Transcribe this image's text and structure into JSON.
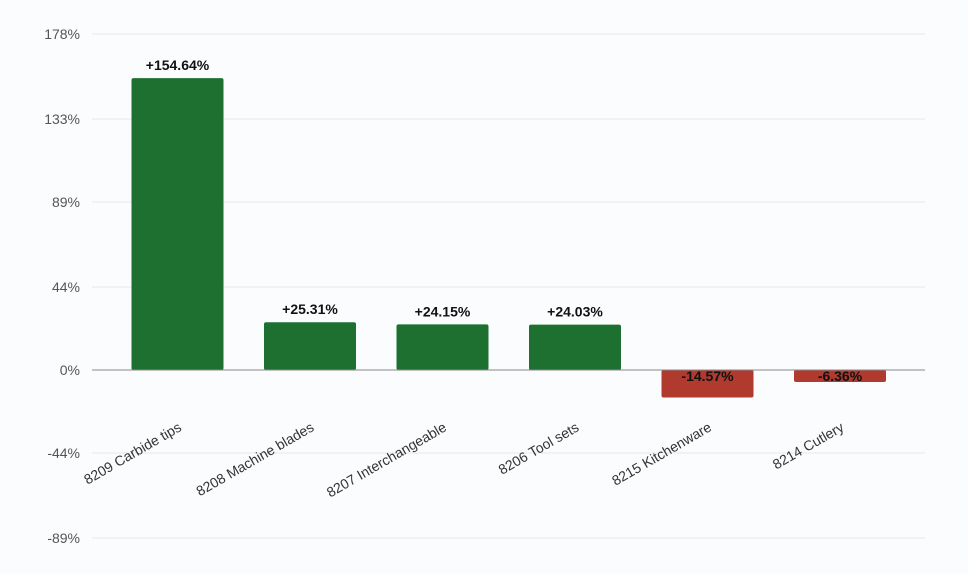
{
  "chart_data": {
    "type": "bar",
    "title": "",
    "xlabel": "",
    "ylabel": "",
    "categories": [
      "8209 Carbide tips",
      "8208 Machine blades",
      "8207 Interchangeable",
      "8206 Tool sets",
      "8215 Kitchenware",
      "8214 Cutlery"
    ],
    "values": [
      154.64,
      25.31,
      24.15,
      24.03,
      -14.57,
      -6.36
    ],
    "data_labels": [
      "+154.64%",
      "+25.31%",
      "+24.15%",
      "+24.03%",
      "-14.57%",
      "-6.36%"
    ],
    "y_ticks": [
      178,
      133,
      89,
      44,
      0,
      -44,
      -89
    ],
    "y_tick_labels": [
      "178%",
      "133%",
      "89%",
      "44%",
      "0%",
      "-44%",
      "-89%"
    ],
    "ylim": [
      -89,
      178
    ],
    "grid": true,
    "legend": "none",
    "colors": {
      "positive": "#1e7030",
      "negative": "#b03a2e",
      "grid": "#e6e9ee",
      "zero_line": "#888888"
    }
  }
}
